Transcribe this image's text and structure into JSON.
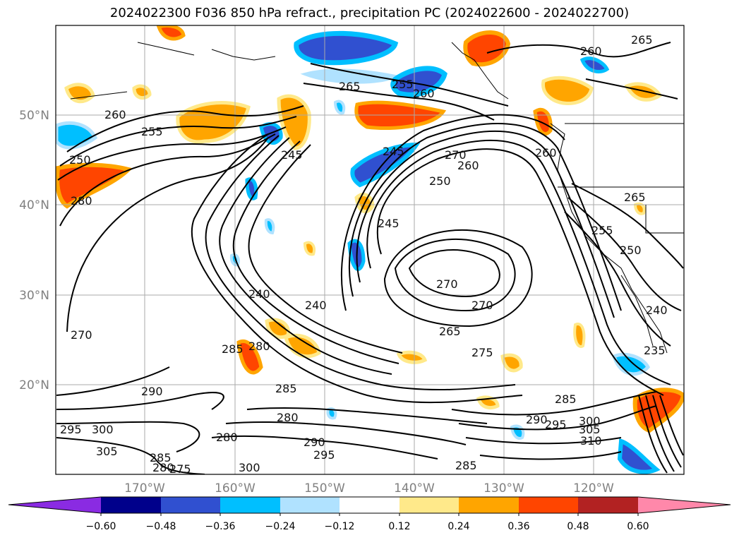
{
  "title": "2024022300 F036 850 hPa refract., precipitation PC (2024022600 - 2024022700)",
  "lat_ticks": [
    "50°N",
    "40°N",
    "30°N",
    "20°N"
  ],
  "lon_ticks": [
    "170°W",
    "160°W",
    "150°W",
    "140°W",
    "130°W",
    "120°W"
  ],
  "contour_labels": [
    "260",
    "255",
    "250",
    "280",
    "245",
    "265",
    "255",
    "260",
    "245",
    "270",
    "260",
    "250",
    "245",
    "270",
    "240",
    "240",
    "270",
    "265",
    "275",
    "285",
    "280",
    "285",
    "290",
    "280",
    "295",
    "300",
    "305",
    "285",
    "280",
    "275",
    "280",
    "290",
    "295",
    "300",
    "285",
    "285",
    "290",
    "295",
    "300",
    "305",
    "310",
    "235",
    "240",
    "250",
    "255",
    "265",
    "260",
    "260",
    "265",
    "270"
  ],
  "colorbar": {
    "tick_labels": [
      "−0.60",
      "−0.48",
      "−0.36",
      "−0.24",
      "−0.12",
      "0.12",
      "0.24",
      "0.36",
      "0.48",
      "0.60"
    ],
    "colors": [
      "#8a2be2",
      "#00008b",
      "#3050d0",
      "#00bfff",
      "#b0e2ff",
      "#ffffff",
      "#ffe98a",
      "#ffa500",
      "#ff4500",
      "#b22222",
      "#ff88aa"
    ]
  },
  "colors": {
    "grid": "#aaaaaa",
    "contour": "#000000",
    "coast": "#000000"
  }
}
